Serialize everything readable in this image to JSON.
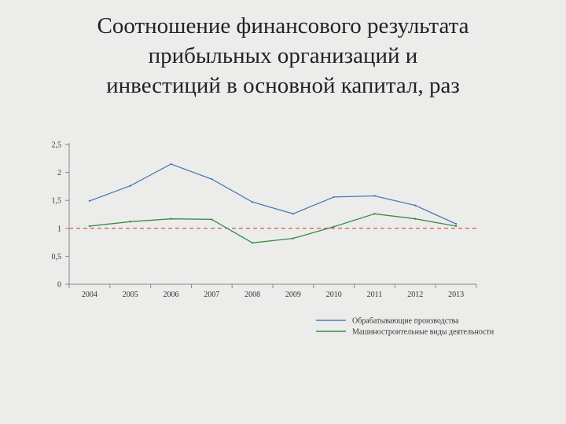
{
  "slide": {
    "title_lines": [
      "Соотношение финансового результата",
      "прибыльных организаций и",
      "инвестиций в основной капитал, раз"
    ]
  },
  "chart_data": {
    "type": "line",
    "x": [
      "2004",
      "2005",
      "2006",
      "2007",
      "2008",
      "2009",
      "2010",
      "2011",
      "2012",
      "2013"
    ],
    "y_ticks": [
      "0",
      "0,5",
      "1",
      "1,5",
      "2",
      "2,5"
    ],
    "ylim": [
      0,
      2.5
    ],
    "grid": false,
    "legend_position": "bottom-right",
    "reference_line": {
      "y": 1,
      "color": "#cc3333",
      "style": "dashed"
    },
    "series": [
      {
        "name": "Обрабатывающие производства",
        "color": "#4a7ab8",
        "values": [
          1.49,
          1.76,
          2.15,
          1.88,
          1.47,
          1.26,
          1.56,
          1.58,
          1.41,
          1.08
        ]
      },
      {
        "name": "Машиностроительные виды деятельности",
        "color": "#3a8a4a",
        "values": [
          1.04,
          1.12,
          1.17,
          1.16,
          0.74,
          0.82,
          1.03,
          1.26,
          1.17,
          1.04
        ]
      }
    ]
  }
}
